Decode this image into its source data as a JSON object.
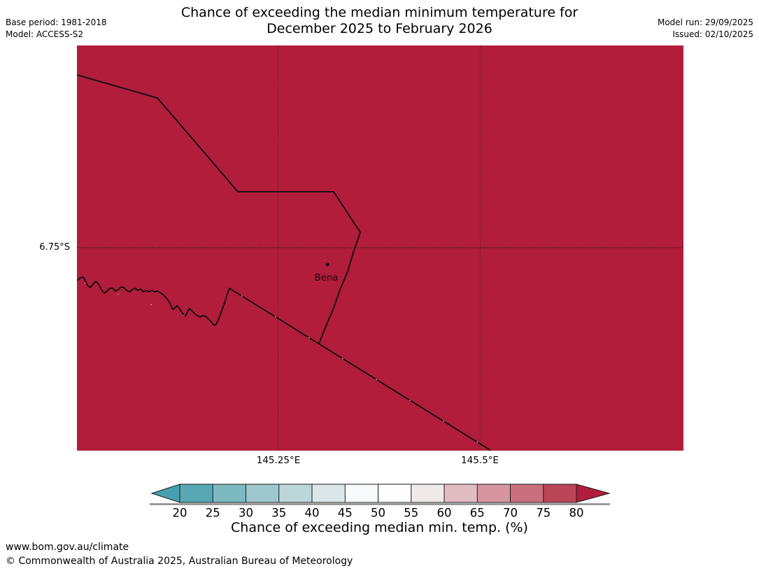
{
  "header": {
    "title_line1": "Chance of exceeding the median minimum temperature for",
    "title_line2": "December 2025 to February 2026",
    "base_period": "Base period: 1981-2018",
    "model": "Model: ACCESS-S2",
    "model_run": "Model run: 29/09/2025",
    "issued": "Issued: 02/10/2025"
  },
  "map": {
    "fill_color": "#B21D3B",
    "line_color": "#0d0d0d",
    "lat_label": "6.75°S",
    "lon_labels": [
      "145.25°E",
      "145.5°E"
    ],
    "place": {
      "name": "Bena"
    }
  },
  "colorbar": {
    "title": "Chance of exceeding median min. temp. (%)",
    "ticks": [
      20,
      25,
      30,
      35,
      40,
      45,
      50,
      55,
      60,
      65,
      70,
      75,
      80
    ],
    "segment_colors": [
      "#57A8B4",
      "#7CB9C1",
      "#9DC8CD",
      "#BCD7D9",
      "#DAE6E8",
      "#F7FAFA",
      "#FEFEFE",
      "#EFEAE9",
      "#E2BCC3",
      "#D795A0",
      "#C96F7D",
      "#BC4457"
    ],
    "arrow_left_color": "#47A0AE",
    "arrow_right_color": "#B21D3B"
  },
  "footer": {
    "url": "www.bom.gov.au/climate",
    "copyright": "© Commonwealth of Australia 2025, Australian Bureau of Meteorology"
  }
}
